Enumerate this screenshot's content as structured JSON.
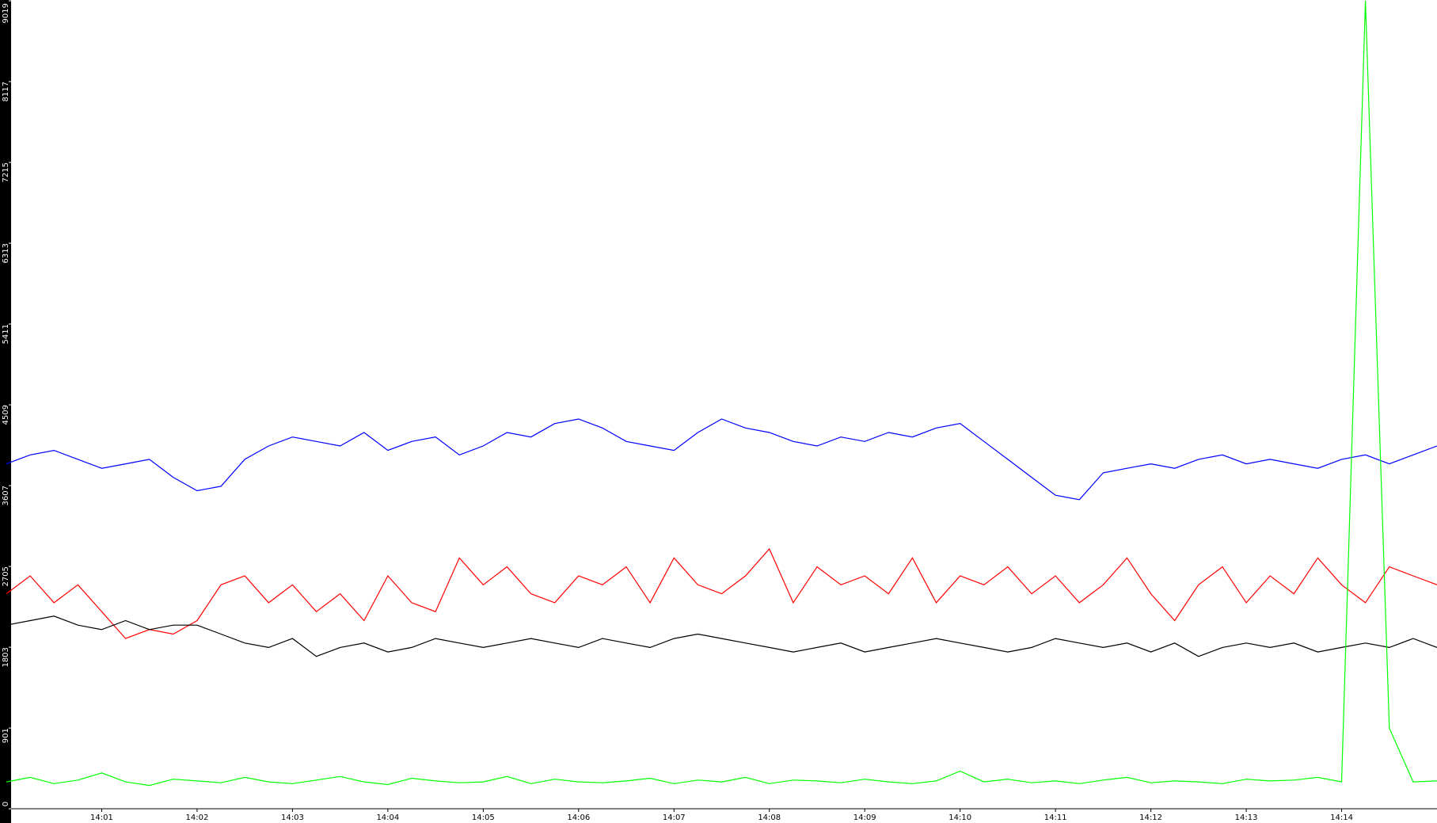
{
  "chart_data": {
    "type": "line",
    "categories": [
      null,
      null,
      null,
      null,
      "14:01",
      null,
      null,
      null,
      "14:02",
      null,
      null,
      null,
      "14:03",
      null,
      null,
      null,
      "14:04",
      null,
      null,
      null,
      "14:05",
      null,
      null,
      null,
      "14:06",
      null,
      null,
      null,
      "14:07",
      null,
      null,
      null,
      "14:08",
      null,
      null,
      null,
      "14:09",
      null,
      null,
      null,
      "14:10",
      null,
      null,
      null,
      "14:11",
      null,
      null,
      null,
      "14:12",
      null,
      null,
      null,
      "14:13",
      null,
      null,
      null,
      "14:14",
      null,
      null,
      null,
      null
    ],
    "series": [
      {
        "color": "#0000ff",
        "values": [
          3850,
          3950,
          4000,
          3900,
          3800,
          3850,
          3900,
          3700,
          3550,
          3600,
          3900,
          4050,
          4150,
          4100,
          4050,
          4200,
          4000,
          4100,
          4150,
          3950,
          4050,
          4200,
          4150,
          4300,
          4350,
          4250,
          4100,
          4050,
          4000,
          4200,
          4350,
          4250,
          4200,
          4100,
          4050,
          4150,
          4100,
          4200,
          4150,
          4250,
          4300,
          4100,
          3900,
          3700,
          3500,
          3450,
          3750,
          3800,
          3850,
          3800,
          3900,
          3950,
          3850,
          3900,
          3850,
          3800,
          3900,
          3950,
          3850,
          3950,
          4050
        ]
      },
      {
        "color": "#ff0000",
        "values": [
          2400,
          2600,
          2300,
          2500,
          2200,
          1900,
          2000,
          1950,
          2100,
          2500,
          2600,
          2300,
          2500,
          2200,
          2400,
          2100,
          2600,
          2300,
          2200,
          2800,
          2500,
          2700,
          2400,
          2300,
          2600,
          2500,
          2700,
          2300,
          2800,
          2500,
          2400,
          2600,
          2900,
          2300,
          2700,
          2500,
          2600,
          2400,
          2800,
          2300,
          2600,
          2500,
          2700,
          2400,
          2600,
          2300,
          2500,
          2800,
          2400,
          2100,
          2500,
          2700,
          2300,
          2600,
          2400,
          2800,
          2500,
          2300,
          2700,
          2600,
          2500
        ]
      },
      {
        "color": "#000000",
        "values": [
          2050,
          2100,
          2150,
          2050,
          2000,
          2100,
          2000,
          2050,
          2050,
          1950,
          1850,
          1800,
          1900,
          1700,
          1800,
          1850,
          1750,
          1800,
          1900,
          1850,
          1800,
          1850,
          1900,
          1850,
          1800,
          1900,
          1850,
          1800,
          1900,
          1950,
          1900,
          1850,
          1800,
          1750,
          1800,
          1850,
          1750,
          1800,
          1850,
          1900,
          1850,
          1800,
          1750,
          1800,
          1900,
          1850,
          1800,
          1850,
          1750,
          1850,
          1700,
          1800,
          1850,
          1800,
          1850,
          1750,
          1800,
          1850,
          1800,
          1900,
          1800
        ]
      },
      {
        "color": "#00ff00",
        "values": [
          300,
          350,
          280,
          320,
          400,
          300,
          260,
          330,
          310,
          290,
          350,
          300,
          280,
          320,
          360,
          300,
          270,
          340,
          310,
          290,
          300,
          360,
          280,
          330,
          300,
          290,
          310,
          340,
          280,
          320,
          300,
          350,
          280,
          320,
          310,
          290,
          330,
          300,
          280,
          310,
          420,
          300,
          330,
          290,
          310,
          280,
          320,
          350,
          290,
          310,
          300,
          280,
          330,
          310,
          320,
          350,
          300,
          9019,
          900,
          300,
          310
        ]
      }
    ],
    "ylim": [
      0,
      9019
    ],
    "yticks": [
      0,
      901,
      1803,
      2705,
      3607,
      4509,
      5411,
      6313,
      7215,
      8117,
      9019
    ]
  }
}
